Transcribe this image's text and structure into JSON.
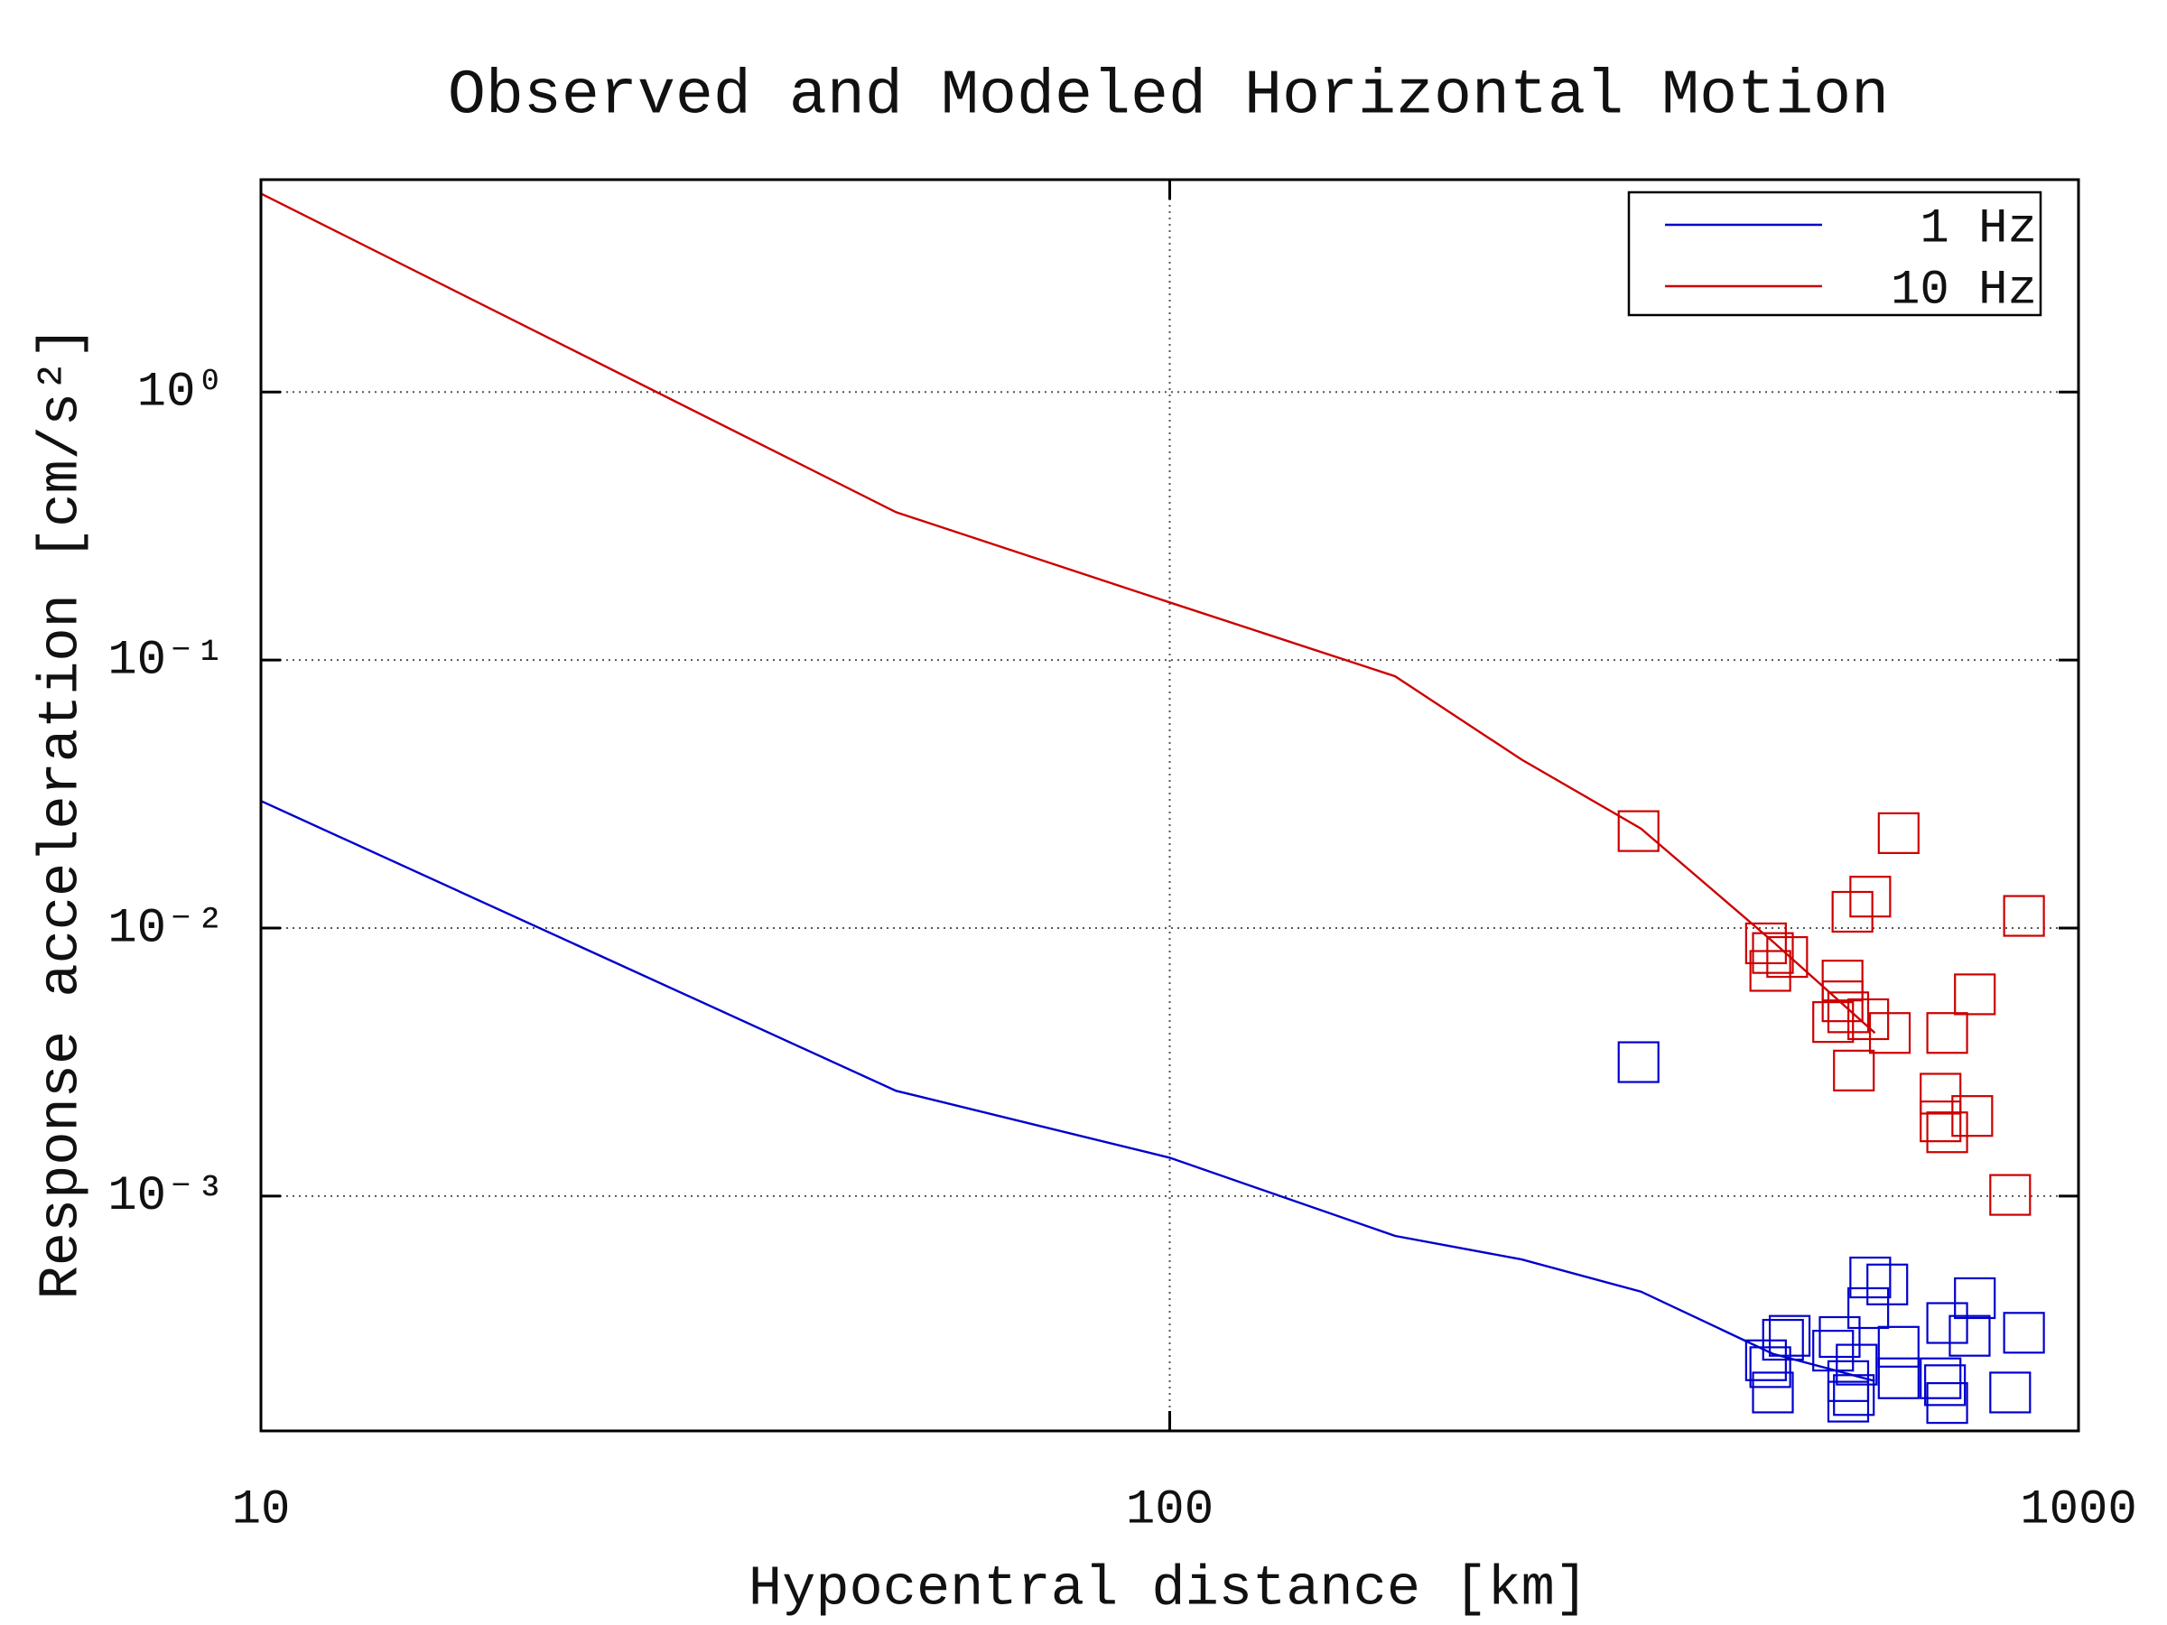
{
  "chart_data": {
    "type": "line",
    "title": "Observed and Modeled Horizontal Motion",
    "x_label": "Hypocentral distance [km]",
    "y_label": "Response acceleration [cm/s²]",
    "x_log": true,
    "y_log": true,
    "grid": true,
    "legend": "upper right",
    "xlim": [
      10,
      1000
    ],
    "xticks": [
      10,
      100,
      1000
    ],
    "ylim": [
      0.000133,
      6.2
    ],
    "yticks": [
      {
        "value": 0.001,
        "label": "10⁻³"
      },
      {
        "value": 0.01,
        "label": "10⁻²"
      },
      {
        "value": 0.1,
        "label": "10⁻¹"
      },
      {
        "value": 1,
        "label": "10⁰"
      }
    ],
    "series": [
      {
        "name": "1 Hz",
        "color": "#0000cc",
        "x": [
          10,
          50,
          100,
          177,
          244,
          330,
          461,
          597
        ],
        "values": [
          0.0298,
          0.00247,
          0.00139,
          0.00071,
          0.00058,
          0.00044,
          0.000258,
          0.000204
        ]
      },
      {
        "name": "10 Hz",
        "color": "#cc0000",
        "x": [
          10,
          50,
          100,
          177,
          244,
          330,
          461,
          597
        ],
        "values": [
          5.5,
          0.356,
          0.164,
          0.087,
          0.0425,
          0.0235,
          0.0089,
          0.00406
        ]
      }
    ],
    "scatter": [
      {
        "color": "#cc0000",
        "x": [
          328,
          634,
          590,
          564,
          871,
          453,
          461,
          478,
          458,
          550,
          769,
          550,
          558,
          537,
          587,
          620,
          717,
          566,
          705,
          764,
          705,
          717,
          841
        ],
        "values": [
          0.023,
          0.0226,
          0.0131,
          0.0115,
          0.0111,
          0.00877,
          0.00807,
          0.0078,
          0.00692,
          0.00637,
          0.00566,
          0.00533,
          0.00485,
          0.00446,
          0.00457,
          0.00406,
          0.00406,
          0.00294,
          0.00241,
          0.00199,
          0.0019,
          0.00173,
          0.00101
        ]
      },
      {
        "color": "#0000cc",
        "x": [
          328,
          590,
          616,
          769,
          587,
          717,
          871,
          481,
          546,
          759,
          634,
          537,
          473,
          453,
          458,
          570,
          558,
          634,
          705,
          461,
          566,
          841,
          713,
          558,
          717
        ],
        "values": [
          0.00316,
          0.000497,
          0.000468,
          0.000416,
          0.000382,
          0.000336,
          0.000309,
          0.000301,
          0.000298,
          0.000301,
          0.000274,
          0.000265,
          0.000291,
          0.000244,
          0.00023,
          0.000235,
          0.000204,
          0.000209,
          0.000209,
          0.000185,
          0.000181,
          0.000185,
          0.000197,
          0.000171,
          0.000169
        ]
      }
    ]
  }
}
